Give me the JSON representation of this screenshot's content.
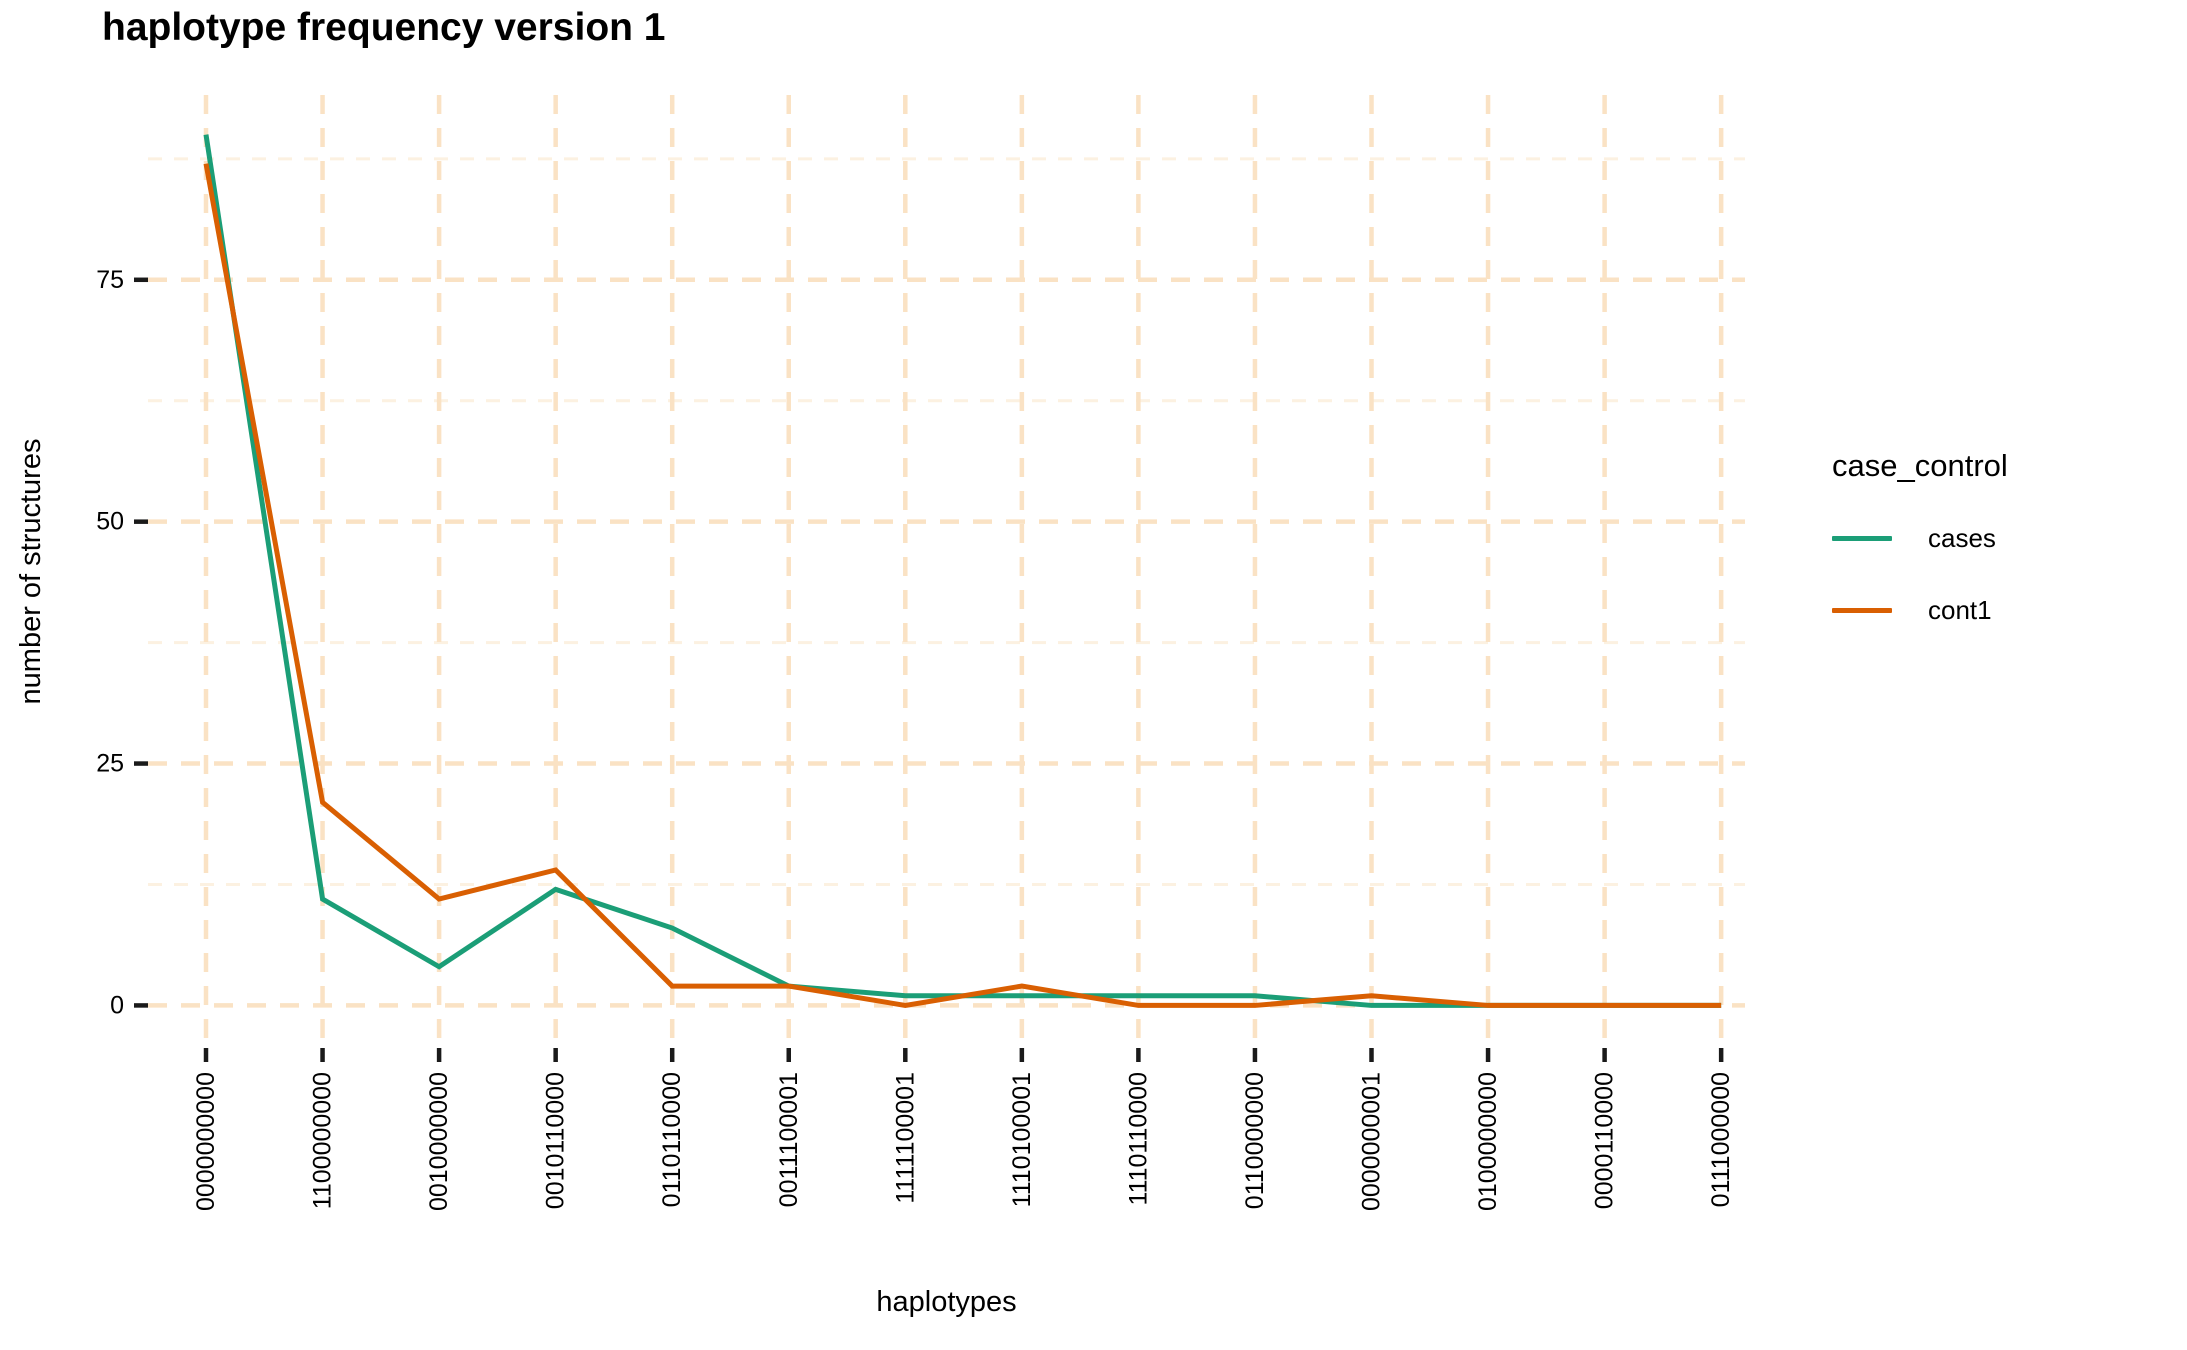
{
  "chart_data": {
    "type": "line",
    "title": "haplotype frequency version 1",
    "xlabel": "haplotypes",
    "ylabel": "number of structures",
    "legend_title": "case_control",
    "legend_position": "right",
    "grid": "dashed",
    "categories": [
      "0000000000",
      "1100000000",
      "0010000000",
      "0010110000",
      "0110110000",
      "0011100001",
      "1111100001",
      "1110100001",
      "1110110000",
      "0110000000",
      "0000000001",
      "0100000000",
      "0000110000",
      "0111000000"
    ],
    "series": [
      {
        "name": "cases",
        "color": "#1B9E77",
        "values": [
          90,
          11,
          4,
          12,
          8,
          2,
          1,
          1,
          1,
          1,
          0,
          0,
          0,
          0
        ]
      },
      {
        "name": "cont1",
        "color": "#D95F02",
        "values": [
          87,
          21,
          11,
          14,
          2,
          2,
          0,
          2,
          0,
          0,
          1,
          0,
          0,
          0
        ]
      }
    ],
    "y_ticks": [
      0,
      25,
      50,
      75
    ],
    "y_minor_ticks": [
      12.5,
      37.5,
      62.5,
      87.5
    ],
    "ylim": [
      -4.4,
      94.1
    ],
    "colors": {
      "major_grid": "#FAE2C4",
      "minor_grid": "#FCF1E1",
      "tick_mark": "#1a1a1a",
      "axis_text": "#000000"
    }
  }
}
